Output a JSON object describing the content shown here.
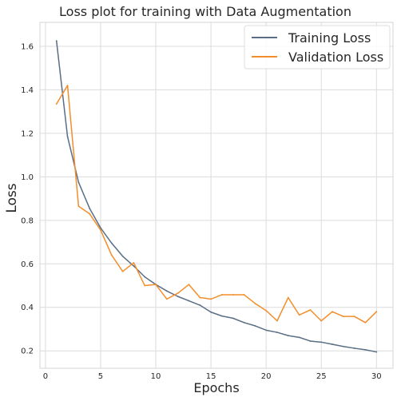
{
  "chart_data": {
    "type": "line",
    "title": "Loss plot for training with Data Augmentation",
    "xlabel": "Epochs",
    "ylabel": "Loss",
    "xlim": [
      -0.5,
      31.5
    ],
    "ylim": [
      0.12,
      1.71
    ],
    "xticks": [
      0,
      5,
      10,
      15,
      20,
      25,
      30
    ],
    "yticks": [
      0.2,
      0.4,
      0.6,
      0.8,
      1.0,
      1.2,
      1.4,
      1.6
    ],
    "xtick_labels": [
      "0",
      "5",
      "10",
      "15",
      "20",
      "25",
      "30"
    ],
    "ytick_labels": [
      "0.2",
      "0.4",
      "0.6",
      "0.8",
      "1.0",
      "1.2",
      "1.4",
      "1.6"
    ],
    "grid": true,
    "legend_position": "top-right",
    "x": [
      1,
      2,
      3,
      4,
      5,
      6,
      7,
      8,
      9,
      10,
      11,
      12,
      13,
      14,
      15,
      16,
      17,
      18,
      19,
      20,
      21,
      22,
      23,
      24,
      25,
      26,
      27,
      28,
      29,
      30
    ],
    "series": [
      {
        "name": "Training Loss",
        "color": "#5a6e86",
        "values": [
          1.625,
          1.185,
          0.975,
          0.855,
          0.765,
          0.695,
          0.635,
          0.59,
          0.54,
          0.505,
          0.475,
          0.45,
          0.43,
          0.41,
          0.378,
          0.36,
          0.35,
          0.33,
          0.315,
          0.295,
          0.285,
          0.27,
          0.262,
          0.245,
          0.24,
          0.23,
          0.22,
          0.212,
          0.205,
          0.195
        ]
      },
      {
        "name": "Validation Loss",
        "color": "#f28e2b",
        "values": [
          1.335,
          1.42,
          0.865,
          0.83,
          0.755,
          0.64,
          0.565,
          0.605,
          0.5,
          0.505,
          0.438,
          0.465,
          0.505,
          0.445,
          0.438,
          0.458,
          0.458,
          0.458,
          0.418,
          0.385,
          0.338,
          0.445,
          0.365,
          0.388,
          0.338,
          0.38,
          0.358,
          0.358,
          0.33,
          0.38
        ]
      }
    ]
  }
}
